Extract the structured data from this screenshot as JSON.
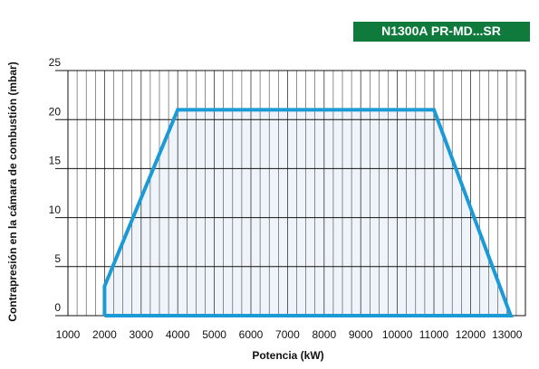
{
  "chart_data": {
    "type": "area",
    "badge": "N1300A PR-MD...SR",
    "xlabel": "Potencia (kW)",
    "ylabel": "Contrapresión en la cámara de combustión (mbar)",
    "x": [
      2000,
      2000,
      4000,
      11000,
      13100,
      2000
    ],
    "values": [
      0,
      3,
      21,
      21,
      0,
      0
    ],
    "color": "#1b9ad6",
    "fill": "#eef4f9",
    "xlim": [
      1000,
      13500
    ],
    "ylim": [
      0,
      25
    ],
    "xticks": [
      1000,
      2000,
      3000,
      4000,
      5000,
      6000,
      7000,
      8000,
      9000,
      10000,
      11000,
      12000,
      13000
    ],
    "yticks": [
      0,
      5,
      10,
      15,
      20,
      25
    ],
    "grid": true
  }
}
